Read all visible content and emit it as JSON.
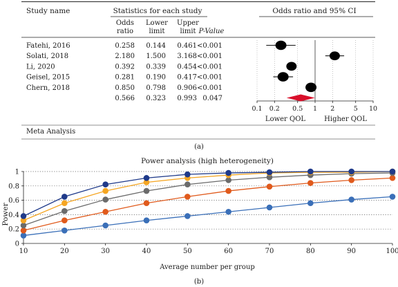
{
  "figure": {
    "panel_a_caption": "(a)",
    "panel_b_caption": "(b)"
  },
  "forest": {
    "headers": {
      "study": "Study name",
      "group": "Statistics for each study",
      "or_top": "Odds",
      "or_bottom": "ratio",
      "lower_top": "Lower",
      "lower_bottom": "limit",
      "upper_top": "Upper",
      "upper_bottom": "limit",
      "p": "P-Value",
      "ci": "Odds ratio and 95% CI"
    },
    "footer": "Meta Analysis",
    "axis": {
      "left_label": "Lower QOL",
      "right_label": "Higher QOL"
    }
  },
  "chart_data": [
    {
      "type": "table",
      "rows": [
        {
          "study": "Fatehi, 2016",
          "or": "0.258",
          "lower": "0.144",
          "upper": "0.461",
          "p": "<0.001",
          "or_v": 0.258,
          "lo_v": 0.144,
          "hi_v": 0.461,
          "size": 8
        },
        {
          "study": "Solati, 2018",
          "or": "2.180",
          "lower": "1.500",
          "upper": "3.168",
          "p": "<0.001",
          "or_v": 2.18,
          "lo_v": 1.5,
          "hi_v": 3.168,
          "size": 7.5
        },
        {
          "study": "Li, 2020",
          "or": "0.392",
          "lower": "0.339",
          "upper": "0.454",
          "p": "<0.001",
          "or_v": 0.392,
          "lo_v": 0.339,
          "hi_v": 0.454,
          "size": 7.5
        },
        {
          "study": "Geisel, 2015",
          "or": "0.281",
          "lower": "0.190",
          "upper": "0.417",
          "p": "<0.001",
          "or_v": 0.281,
          "lo_v": 0.19,
          "hi_v": 0.417,
          "size": 8
        },
        {
          "study": "Chern, 2018",
          "or": "0.850",
          "lower": "0.798",
          "upper": "0.906",
          "p": "<0.001",
          "or_v": 0.85,
          "lo_v": 0.798,
          "hi_v": 0.906,
          "size": 8
        }
      ],
      "summary": {
        "or": "0.566",
        "lower": "0.323",
        "upper": "0.993",
        "p": "0.047",
        "or_v": 0.566,
        "lo_v": 0.323,
        "hi_v": 0.993
      },
      "x_scale": "log",
      "xlim": [
        0.1,
        10
      ],
      "x_ticks": [
        0.1,
        0.2,
        0.5,
        1,
        2,
        5,
        10
      ],
      "x_tick_labels": [
        "0.1",
        "0.2",
        "0.5",
        "1",
        "2",
        "5",
        "10"
      ],
      "summary_color": "#d9102b"
    },
    {
      "type": "line",
      "title": "Power analysis (high heterogeneity)",
      "xlabel": "Average number per group",
      "ylabel": "Power",
      "x": [
        10,
        20,
        30,
        40,
        50,
        60,
        70,
        80,
        90,
        100
      ],
      "xlim": [
        10,
        100
      ],
      "ylim": [
        0,
        1
      ],
      "x_ticks": [
        10,
        20,
        30,
        40,
        50,
        60,
        70,
        80,
        90,
        100
      ],
      "y_ticks": [
        0,
        0.2,
        0.4,
        0.6,
        0.8,
        1
      ],
      "y_tick_labels": [
        "0",
        "0.2",
        "0.4",
        "0.6",
        "0.8",
        "1"
      ],
      "grid": "dotted horizontal",
      "series": [
        {
          "color": "#3a6fb8",
          "values": [
            0.11,
            0.18,
            0.25,
            0.32,
            0.38,
            0.44,
            0.5,
            0.56,
            0.61,
            0.65
          ]
        },
        {
          "color": "#e05a1c",
          "values": [
            0.18,
            0.32,
            0.44,
            0.56,
            0.65,
            0.73,
            0.79,
            0.84,
            0.88,
            0.91
          ]
        },
        {
          "color": "#6b6b6b",
          "values": [
            0.25,
            0.45,
            0.61,
            0.73,
            0.82,
            0.88,
            0.92,
            0.95,
            0.97,
            0.98
          ]
        },
        {
          "color": "#f5a623",
          "values": [
            0.32,
            0.56,
            0.73,
            0.85,
            0.91,
            0.95,
            0.98,
            0.99,
            0.99,
            1.0
          ]
        },
        {
          "color": "#1f3a8a",
          "values": [
            0.38,
            0.65,
            0.82,
            0.91,
            0.96,
            0.98,
            0.99,
            1.0,
            1.0,
            1.0
          ]
        }
      ]
    }
  ]
}
